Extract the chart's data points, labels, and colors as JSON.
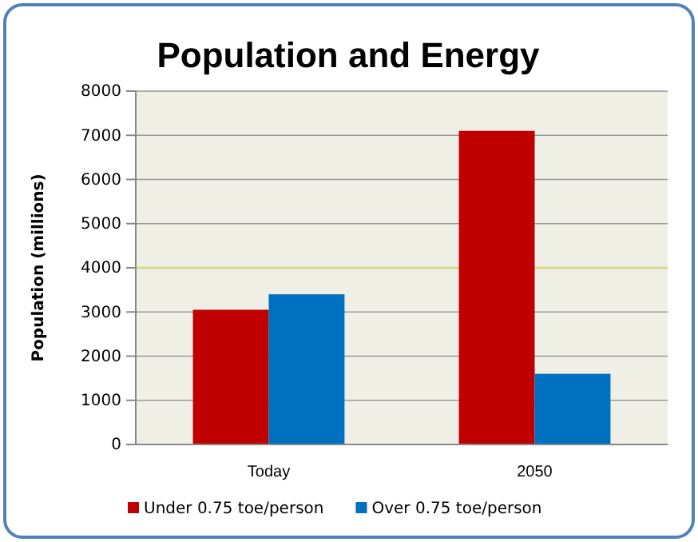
{
  "chart_data": {
    "type": "bar",
    "title": "Population and Energy",
    "ylabel": "Population (millions)",
    "categories": [
      "Today",
      "2050"
    ],
    "series": [
      {
        "name": "Under 0.75 toe/person",
        "color": "#c00000",
        "values": [
          3050,
          7100
        ]
      },
      {
        "name": "Over 0.75 toe/person",
        "color": "#0070c0",
        "values": [
          3400,
          1600
        ]
      }
    ],
    "ylim": [
      0,
      8000
    ],
    "yticks": [
      0,
      1000,
      2000,
      3000,
      4000,
      5000,
      6000,
      7000,
      8000
    ],
    "grid": "y",
    "ref_lines": [
      {
        "axis": "y",
        "value": 4000,
        "color": "#d8d890"
      }
    ],
    "legend": "bottom"
  }
}
